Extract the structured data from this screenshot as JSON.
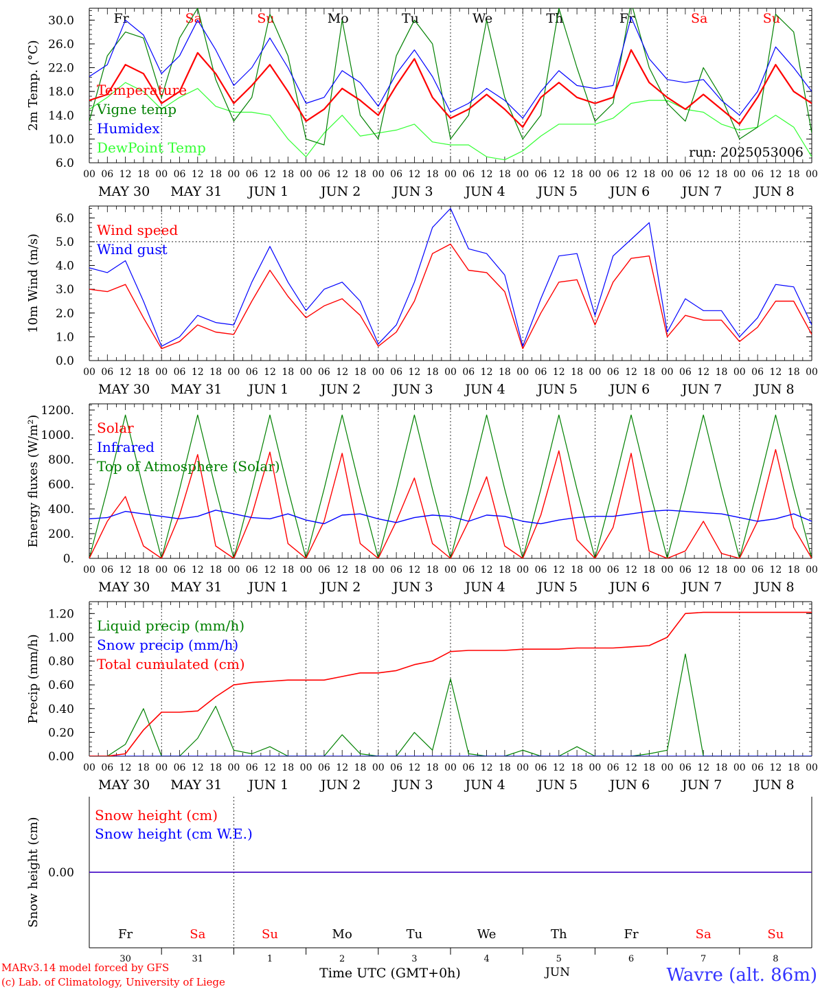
{
  "meta": {
    "run": "run: 2025053006",
    "credit_1": "MARv3.14 model forced by GFS",
    "credit_2": "(c) Lab. of Climatology, University of Liege",
    "station": "Wavre (alt. 86m)",
    "xlabel": "Time UTC (GMT+0h)",
    "month": "JUN"
  },
  "colors": {
    "red": "#ff0000",
    "green": "#008000",
    "blue": "#0000ff",
    "lightgreen": "#33ff33",
    "axis": "#000000"
  },
  "days": {
    "abbr": [
      "Fr",
      "Sa",
      "Su",
      "Mo",
      "Tu",
      "We",
      "Th",
      "Fr",
      "Sa",
      "Su"
    ],
    "weekend": [
      false,
      true,
      true,
      false,
      false,
      false,
      false,
      false,
      true,
      true
    ],
    "labels": [
      "MAY 30",
      "MAY 31",
      "JUN  1",
      "JUN  2",
      "JUN  3",
      "JUN  4",
      "JUN  5",
      "JUN  6",
      "JUN  7",
      "JUN  8"
    ],
    "numbers": [
      "30",
      "31",
      "1",
      "2",
      "3",
      "4",
      "5",
      "6",
      "7",
      "8"
    ],
    "hours": [
      "00",
      "06",
      "12",
      "18"
    ],
    "final_hour": "00"
  },
  "chart_data": [
    {
      "type": "line",
      "id": "temp",
      "ylabel": "2m Temp. (°C)",
      "ylim": [
        6,
        32
      ],
      "yticks": [
        "6.0",
        "10.0",
        "14.0",
        "18.0",
        "22.0",
        "26.0",
        "30.0"
      ],
      "x_hours": [
        0,
        6,
        12,
        18,
        24,
        30,
        36,
        42,
        48,
        54,
        60,
        66,
        72,
        78,
        84,
        90,
        96,
        102,
        108,
        114,
        120,
        126,
        132,
        138,
        144,
        150,
        156,
        162,
        168,
        174,
        180,
        186,
        192,
        198,
        204,
        210,
        216,
        222,
        228,
        234,
        240
      ],
      "series": [
        {
          "name": "Temperature",
          "color": "#ff0000",
          "width": 2.2,
          "values": [
            16.5,
            17.5,
            22.5,
            21,
            16,
            18,
            24.5,
            21,
            16,
            19,
            22.5,
            18,
            13,
            15,
            18.5,
            16.5,
            14,
            19,
            23.5,
            17,
            13.5,
            15,
            17.5,
            15,
            12,
            17,
            19.5,
            17,
            16,
            17,
            25,
            19.5,
            17,
            15,
            17.5,
            15,
            12.5,
            17,
            22.5,
            18,
            16
          ]
        },
        {
          "name": "Vigne temp",
          "color": "#008000",
          "width": 1.2,
          "values": [
            13,
            24,
            28,
            27,
            17,
            27,
            32,
            20,
            13,
            17,
            31,
            24,
            10,
            9,
            30,
            14,
            10,
            24,
            30,
            26,
            10,
            14,
            30,
            17,
            10,
            14,
            32,
            22,
            13,
            16,
            33,
            22,
            16,
            13,
            22,
            17,
            10,
            12,
            31,
            28,
            11
          ]
        },
        {
          "name": "Humidex",
          "color": "#0000ff",
          "width": 1.2,
          "values": [
            20.5,
            22.5,
            30,
            27.5,
            21,
            24,
            30,
            25,
            19,
            22,
            27,
            22,
            16,
            17,
            21.5,
            19.5,
            15.5,
            21,
            25,
            20.5,
            14.5,
            16,
            18.5,
            16.5,
            13.5,
            18,
            21.5,
            19,
            18.5,
            19,
            30.5,
            23.5,
            20,
            19.5,
            20,
            16.5,
            14,
            18,
            25.5,
            22,
            18
          ]
        },
        {
          "name": "DewPoint Temp",
          "color": "#33ff33",
          "width": 1.2,
          "values": [
            15,
            17,
            19.5,
            18,
            15,
            17,
            18.5,
            15.5,
            14.5,
            14.5,
            14,
            10,
            7,
            11,
            14,
            10.5,
            11,
            11.5,
            12.5,
            9.5,
            9,
            9,
            7,
            6.5,
            8,
            10.5,
            12.5,
            12.5,
            12.5,
            13.5,
            16,
            16.5,
            16.5,
            15,
            14.5,
            12.5,
            11.5,
            12,
            14,
            12,
            7
          ]
        }
      ]
    },
    {
      "type": "line",
      "id": "wind",
      "ylabel": "10m Wind (m/s)",
      "ylim": [
        0,
        6.5
      ],
      "yticks": [
        "0.0",
        "1.0",
        "2.0",
        "3.0",
        "4.0",
        "5.0",
        "6.0"
      ],
      "reference_line": 5,
      "x_hours": [
        0,
        6,
        12,
        18,
        24,
        30,
        36,
        42,
        48,
        54,
        60,
        66,
        72,
        78,
        84,
        90,
        96,
        102,
        108,
        114,
        120,
        126,
        132,
        138,
        144,
        150,
        156,
        162,
        168,
        174,
        180,
        186,
        192,
        198,
        204,
        210,
        216,
        222,
        228,
        234,
        240
      ],
      "series": [
        {
          "name": "Wind speed",
          "color": "#ff0000",
          "width": 1.4,
          "values": [
            3.0,
            2.9,
            3.2,
            1.8,
            0.5,
            0.8,
            1.5,
            1.2,
            1.1,
            2.5,
            3.8,
            2.7,
            1.8,
            2.3,
            2.6,
            1.9,
            0.6,
            1.2,
            2.5,
            4.5,
            4.9,
            3.8,
            3.7,
            2.9,
            0.5,
            2.0,
            3.3,
            3.4,
            1.5,
            3.3,
            4.3,
            4.4,
            1.0,
            1.9,
            1.7,
            1.7,
            0.8,
            1.4,
            2.5,
            2.5,
            1.1
          ]
        },
        {
          "name": "Wind gust",
          "color": "#0000ff",
          "width": 1.2,
          "values": [
            3.9,
            3.7,
            4.2,
            2.5,
            0.6,
            1.0,
            1.9,
            1.6,
            1.5,
            3.3,
            4.8,
            3.3,
            2.1,
            3.0,
            3.3,
            2.5,
            0.7,
            1.5,
            3.3,
            5.6,
            6.4,
            4.7,
            4.5,
            3.6,
            0.6,
            2.6,
            4.4,
            4.5,
            1.9,
            4.4,
            5.1,
            5.8,
            1.2,
            2.6,
            2.1,
            2.1,
            1.0,
            1.8,
            3.2,
            3.1,
            1.5
          ]
        }
      ]
    },
    {
      "type": "line",
      "id": "energy",
      "ylabel": "Energy fluxes (W/m²)",
      "ylim": [
        0,
        1250
      ],
      "yticks": [
        "0.",
        "200.",
        "400.",
        "600.",
        "800.",
        "1000.",
        "1200."
      ],
      "x_hours": [
        0,
        6,
        12,
        18,
        24,
        30,
        36,
        42,
        48,
        54,
        60,
        66,
        72,
        78,
        84,
        90,
        96,
        102,
        108,
        114,
        120,
        126,
        132,
        138,
        144,
        150,
        156,
        162,
        168,
        174,
        180,
        186,
        192,
        198,
        204,
        210,
        216,
        222,
        228,
        234,
        240
      ],
      "series": [
        {
          "name": "Solar",
          "color": "#ff0000",
          "width": 1.4,
          "values": [
            0,
            300,
            500,
            100,
            0,
            350,
            840,
            100,
            0,
            350,
            860,
            120,
            0,
            300,
            850,
            120,
            0,
            300,
            650,
            120,
            0,
            300,
            660,
            100,
            0,
            350,
            870,
            150,
            0,
            250,
            850,
            60,
            0,
            60,
            300,
            40,
            0,
            300,
            880,
            250,
            0
          ]
        },
        {
          "name": "Infrared",
          "color": "#0000ff",
          "width": 1.4,
          "values": [
            320,
            330,
            380,
            360,
            340,
            320,
            340,
            390,
            360,
            330,
            320,
            360,
            310,
            280,
            350,
            360,
            320,
            290,
            330,
            350,
            340,
            300,
            350,
            340,
            300,
            280,
            310,
            330,
            340,
            340,
            360,
            380,
            390,
            380,
            370,
            360,
            330,
            300,
            320,
            360,
            300
          ]
        },
        {
          "name": "Top of Atmosphere (Solar)",
          "color": "#008000",
          "width": 1.2,
          "values": [
            0,
            560,
            1160,
            560,
            0,
            560,
            1160,
            560,
            0,
            560,
            1160,
            560,
            0,
            560,
            1160,
            560,
            0,
            560,
            1160,
            560,
            0,
            560,
            1160,
            560,
            0,
            560,
            1160,
            560,
            0,
            560,
            1160,
            560,
            0,
            560,
            1160,
            560,
            0,
            560,
            1160,
            560,
            0
          ]
        }
      ]
    },
    {
      "type": "line",
      "id": "precip",
      "ylabel": "Precip (mm/h)",
      "ylim": [
        0,
        1.3
      ],
      "yticks": [
        "0.00",
        "0.20",
        "0.40",
        "0.60",
        "0.80",
        "1.00",
        "1.20"
      ],
      "x_hours": [
        0,
        6,
        12,
        18,
        24,
        30,
        36,
        42,
        48,
        54,
        60,
        66,
        72,
        78,
        84,
        90,
        96,
        102,
        108,
        114,
        120,
        126,
        132,
        138,
        144,
        150,
        156,
        162,
        168,
        174,
        180,
        186,
        192,
        198,
        204,
        210,
        216,
        222,
        228,
        234,
        240
      ],
      "series": [
        {
          "name": "Liquid precip (mm/h)",
          "color": "#008000",
          "width": 1.2,
          "values": [
            0,
            0,
            0.1,
            0.4,
            0,
            0,
            0.15,
            0.42,
            0.05,
            0.02,
            0.08,
            0,
            0,
            0,
            0.18,
            0.02,
            0,
            0,
            0.2,
            0.05,
            0.65,
            0.02,
            0,
            0,
            0.05,
            0,
            0,
            0.08,
            0,
            0,
            0,
            0.02,
            0.05,
            0.86,
            0,
            0,
            0,
            0,
            0,
            0,
            0
          ]
        },
        {
          "name": "Snow precip (mm/h)",
          "color": "#0000ff",
          "width": 1.2,
          "values": [
            0,
            0,
            0,
            0,
            0,
            0,
            0,
            0,
            0,
            0,
            0,
            0,
            0,
            0,
            0,
            0,
            0,
            0,
            0,
            0,
            0,
            0,
            0,
            0,
            0,
            0,
            0,
            0,
            0,
            0,
            0,
            0,
            0,
            0,
            0,
            0,
            0,
            0,
            0,
            0,
            0
          ]
        },
        {
          "name": "Total cumulated (cm)",
          "color": "#ff0000",
          "width": 1.6,
          "values": [
            0,
            0,
            0.02,
            0.22,
            0.37,
            0.37,
            0.38,
            0.5,
            0.6,
            0.62,
            0.63,
            0.64,
            0.64,
            0.64,
            0.67,
            0.7,
            0.7,
            0.72,
            0.77,
            0.8,
            0.88,
            0.89,
            0.89,
            0.89,
            0.9,
            0.9,
            0.9,
            0.91,
            0.91,
            0.91,
            0.92,
            0.93,
            1.0,
            1.2,
            1.21,
            1.21,
            1.21,
            1.21,
            1.21,
            1.21,
            1.21
          ]
        }
      ]
    },
    {
      "type": "line",
      "id": "snow",
      "ylabel": "Snow height (cm)",
      "ylim": [
        -1,
        1
      ],
      "yticks": [
        "0.00"
      ],
      "x_hours": [
        0,
        240
      ],
      "series": [
        {
          "name": "Snow height (cm)",
          "color": "#ff0000",
          "width": 1.4,
          "values": [
            0,
            0
          ]
        },
        {
          "name": "Snow height (cm W.E.)",
          "color": "#0000ff",
          "width": 1.2,
          "values": [
            0,
            0
          ]
        }
      ]
    }
  ]
}
